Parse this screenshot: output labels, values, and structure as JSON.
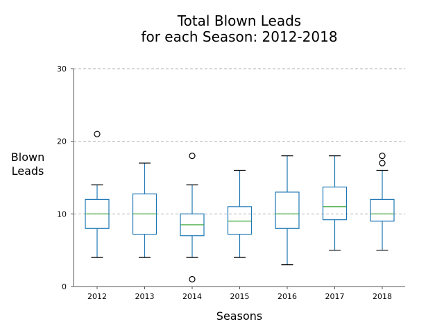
{
  "chart_data": {
    "type": "box",
    "title_lines": [
      "Total Blown Leads",
      "for each Season: 2012-2018"
    ],
    "xlabel": "Seasons",
    "ylabel_lines": [
      "Blown",
      "Leads"
    ],
    "categories": [
      "2012",
      "2013",
      "2014",
      "2015",
      "2016",
      "2017",
      "2018"
    ],
    "boxes": [
      {
        "min": 4,
        "q1": 8,
        "median": 10,
        "q3": 12,
        "max": 14,
        "outliers": [
          21
        ]
      },
      {
        "min": 4,
        "q1": 7.2,
        "median": 10,
        "q3": 12.75,
        "max": 17,
        "outliers": []
      },
      {
        "min": 4,
        "q1": 7,
        "median": 8.5,
        "q3": 10,
        "max": 14,
        "outliers": [
          18,
          1
        ]
      },
      {
        "min": 4,
        "q1": 7.2,
        "median": 9,
        "q3": 11,
        "max": 16,
        "outliers": []
      },
      {
        "min": 3,
        "q1": 8,
        "median": 10,
        "q3": 13,
        "max": 18,
        "outliers": []
      },
      {
        "min": 5,
        "q1": 9.2,
        "median": 11,
        "q3": 13.7,
        "max": 18,
        "outliers": []
      },
      {
        "min": 5,
        "q1": 9,
        "median": 10,
        "q3": 12,
        "max": 16,
        "outliers": [
          17,
          18
        ]
      }
    ],
    "y_ticks": [
      0,
      10,
      20,
      30
    ],
    "ylim": [
      0,
      30
    ],
    "grid": "y-dashed",
    "colors": {
      "box": "#1f77b4",
      "median": "#2ca02c",
      "whisker_cap": "#000000",
      "outlier": "#000000",
      "grid": "#b0b0b0",
      "axis": "#555555"
    }
  }
}
